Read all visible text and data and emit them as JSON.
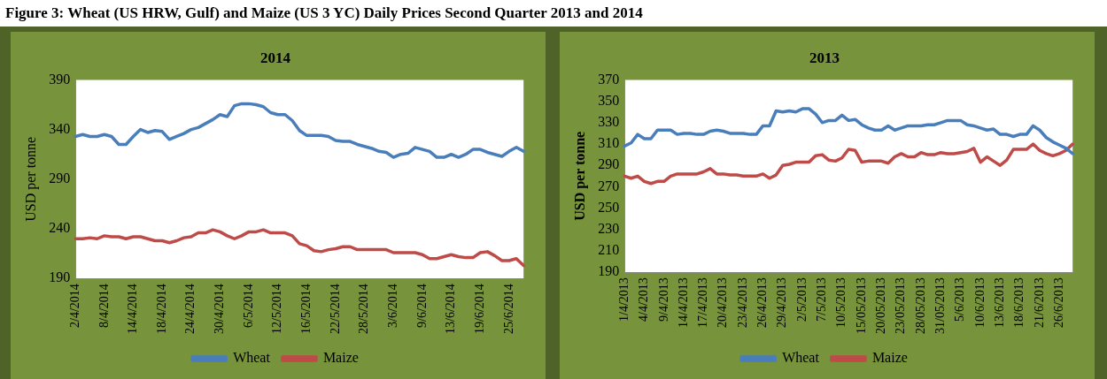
{
  "chart_data": [
    {
      "type": "line",
      "title": "2014",
      "ylabel": "USD per tonne",
      "annotations": [
        "Figure 3: Wheat (US HRW, Gulf) and Maize (US 3 YC) Daily Prices Second Quarter 2013 and 2014"
      ],
      "categories": [
        "2/4/2014",
        null,
        null,
        null,
        "8/4/2014",
        null,
        null,
        null,
        "14/4/2014",
        null,
        null,
        null,
        "18/4/2014",
        null,
        null,
        null,
        "24/4/2014",
        null,
        null,
        null,
        "30/4/2014",
        null,
        null,
        null,
        "6/5/2014",
        null,
        null,
        null,
        "12/5/2014",
        null,
        null,
        null,
        "16/5/2014",
        null,
        null,
        null,
        "22/5/2014",
        null,
        null,
        null,
        "28/5/2014",
        null,
        null,
        null,
        "3/6/2014",
        null,
        null,
        null,
        "9/6/2014",
        null,
        null,
        null,
        "13/6/2014",
        null,
        null,
        null,
        "19/6/2014",
        null,
        null,
        null,
        "25/6/2014",
        null,
        null
      ],
      "series": [
        {
          "name": "Wheat",
          "color": "#4a7ebb",
          "values": [
            333,
            335,
            333,
            333,
            335,
            333,
            325,
            325,
            333,
            340,
            337,
            339,
            338,
            330,
            333,
            336,
            340,
            342,
            346,
            350,
            355,
            353,
            364,
            366,
            366,
            365,
            363,
            357,
            355,
            355,
            349,
            339,
            334,
            334,
            334,
            333,
            329,
            328,
            328,
            325,
            323,
            321,
            318,
            317,
            312,
            315,
            316,
            322,
            320,
            318,
            312,
            312,
            315,
            312,
            315,
            320,
            320,
            317,
            315,
            313,
            318,
            322,
            318
          ]
        },
        {
          "name": "Maize",
          "color": "#be4b48",
          "values": [
            230,
            230,
            231,
            230,
            233,
            232,
            232,
            230,
            232,
            232,
            230,
            228,
            228,
            226,
            228,
            231,
            232,
            236,
            236,
            239,
            237,
            233,
            230,
            233,
            237,
            237,
            239,
            236,
            236,
            236,
            233,
            225,
            223,
            218,
            217,
            219,
            220,
            222,
            222,
            219,
            219,
            219,
            219,
            219,
            216,
            216,
            216,
            216,
            214,
            210,
            210,
            212,
            214,
            212,
            211,
            211,
            216,
            217,
            213,
            208,
            208,
            210,
            203
          ]
        }
      ],
      "ylim": [
        190,
        390
      ],
      "yticks": [
        190,
        240,
        290,
        340,
        390
      ],
      "grid": false,
      "legend": "bottom",
      "marker": "none",
      "line_style": "solid"
    },
    {
      "type": "line",
      "title": "2013",
      "ylabel": "USD per tonne",
      "categories": [
        "1/4/2013",
        null,
        null,
        "4/4/2013",
        null,
        null,
        "9/4/2013",
        null,
        null,
        "14/4/2013",
        null,
        null,
        "17/4/2013",
        null,
        null,
        "20/4/2013",
        null,
        null,
        "23/4/2013",
        null,
        null,
        "26/4/2013",
        null,
        null,
        "29/4/2013",
        null,
        null,
        "2/5/2013",
        null,
        null,
        "7/5/2013",
        null,
        null,
        "10/5/2013",
        null,
        null,
        "15/05/2013",
        null,
        null,
        "20/05/2013",
        null,
        null,
        "23/05/2013",
        null,
        null,
        "28/05/2013",
        null,
        null,
        "31/05/2013",
        null,
        null,
        "5/6/2013",
        null,
        null,
        "10/6/2013",
        null,
        null,
        "13/6/2013",
        null,
        null,
        "18/6/2013",
        null,
        null,
        "21/6/2013",
        null,
        null,
        "26/6/2013",
        null,
        null
      ],
      "series": [
        {
          "name": "Wheat",
          "color": "#4a7ebb",
          "values": [
            308,
            311,
            319,
            315,
            315,
            323,
            323,
            323,
            319,
            320,
            320,
            319,
            319,
            322,
            323,
            322,
            320,
            320,
            320,
            319,
            319,
            327,
            327,
            341,
            340,
            341,
            340,
            343,
            343,
            338,
            330,
            332,
            332,
            337,
            332,
            333,
            328,
            325,
            323,
            323,
            327,
            323,
            325,
            327,
            327,
            327,
            328,
            328,
            330,
            332,
            332,
            332,
            328,
            327,
            325,
            323,
            324,
            319,
            319,
            317,
            319,
            319,
            327,
            323,
            316,
            312,
            309,
            306,
            301
          ]
        },
        {
          "name": "Maize",
          "color": "#be4b48",
          "values": [
            280,
            278,
            280,
            275,
            273,
            275,
            275,
            280,
            282,
            282,
            282,
            282,
            284,
            287,
            282,
            282,
            281,
            281,
            280,
            280,
            280,
            282,
            278,
            281,
            290,
            291,
            293,
            293,
            293,
            299,
            300,
            295,
            294,
            297,
            305,
            304,
            293,
            294,
            294,
            294,
            292,
            298,
            301,
            298,
            298,
            302,
            300,
            300,
            302,
            301,
            301,
            302,
            303,
            306,
            293,
            298,
            294,
            290,
            295,
            305,
            305,
            305,
            310,
            304,
            301,
            299,
            301,
            304,
            310
          ]
        }
      ],
      "ylim": [
        190,
        370
      ],
      "yticks": [
        190,
        210,
        230,
        250,
        270,
        290,
        310,
        330,
        350,
        370
      ],
      "grid": false,
      "legend": "bottom",
      "marker": "none",
      "line_style": "solid"
    }
  ]
}
